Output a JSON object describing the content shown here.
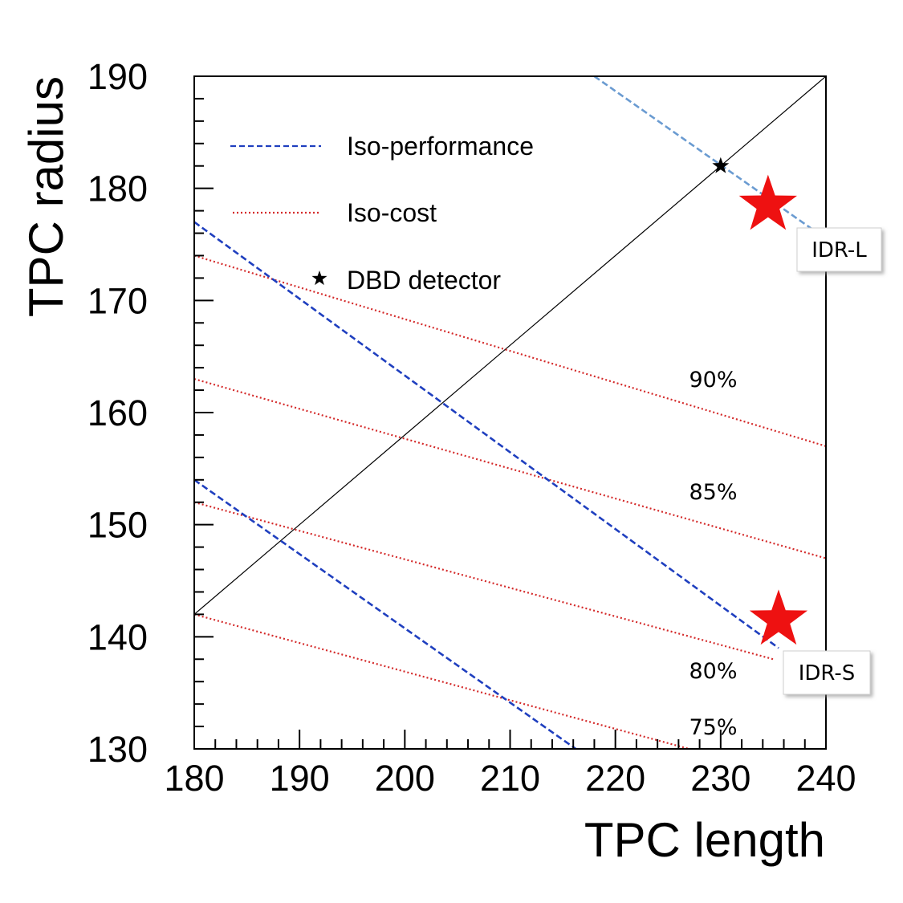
{
  "chart_data": {
    "type": "line",
    "xlabel": "TPC length",
    "ylabel": "TPC radius",
    "xlim": [
      180,
      240
    ],
    "ylim": [
      130,
      190
    ],
    "xticks": [
      "180",
      "190",
      "200",
      "210",
      "220",
      "230",
      "240"
    ],
    "yticks": [
      "130",
      "140",
      "150",
      "160",
      "170",
      "180",
      "190"
    ],
    "legend": {
      "placement": "top-left",
      "entries": [
        {
          "label": "Iso-performance",
          "style": "dashed",
          "color": "#1f3fbf"
        },
        {
          "label": "Iso-cost",
          "style": "dotted",
          "color": "#d42a2a"
        },
        {
          "label": "DBD detector",
          "style": "star-marker",
          "color": "#000000"
        }
      ]
    },
    "iso_performance": [
      {
        "points": [
          [
            218,
            190
          ],
          [
            240,
            175.5
          ]
        ],
        "color": "#6a9bd1"
      },
      {
        "points": [
          [
            180,
            177
          ],
          [
            235.5,
            139
          ]
        ],
        "color": "#1f3fbf"
      },
      {
        "points": [
          [
            180,
            154
          ],
          [
            217,
            129.5
          ]
        ],
        "color": "#1f3fbf"
      }
    ],
    "iso_cost": [
      {
        "label": "90%",
        "points": [
          [
            180,
            174
          ],
          [
            240,
            157
          ]
        ],
        "label_at": [
          227,
          163
        ]
      },
      {
        "label": "85%",
        "points": [
          [
            180,
            163
          ],
          [
            240,
            147
          ]
        ],
        "label_at": [
          227,
          153
        ]
      },
      {
        "label": "80%",
        "points": [
          [
            180,
            152
          ],
          [
            235,
            138
          ]
        ],
        "label_at": [
          227,
          137
        ]
      },
      {
        "label": "75%",
        "points": [
          [
            180,
            142
          ],
          [
            227,
            130
          ]
        ],
        "label_at": [
          227,
          132
        ]
      }
    ],
    "reference_line": {
      "points": [
        [
          180,
          142
        ],
        [
          240,
          190
        ]
      ],
      "color": "#000000"
    },
    "dbd_detector": {
      "x": 230,
      "y": 182
    },
    "designs": [
      {
        "label": "IDR-L",
        "x": 234.5,
        "y": 178.5
      },
      {
        "label": "IDR-S",
        "x": 235.5,
        "y": 141.5
      }
    ],
    "colors": {
      "iso_cost": "#d42a2a",
      "design_star": "#ee1111"
    }
  }
}
